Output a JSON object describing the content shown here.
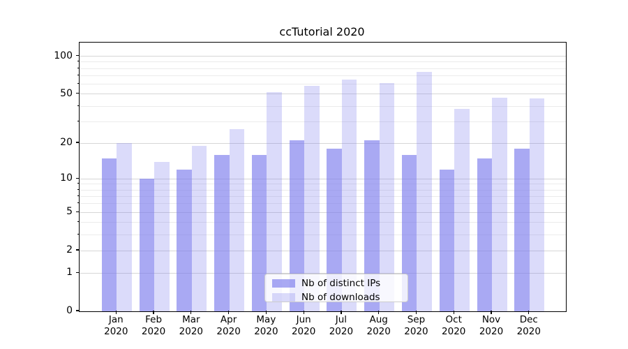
{
  "figure": {
    "title": "ccTutorial 2020"
  },
  "chart_data": {
    "type": "bar",
    "title": "ccTutorial 2020",
    "categories": [
      "Jan 2020",
      "Feb 2020",
      "Mar 2020",
      "Apr 2020",
      "May 2020",
      "Jun 2020",
      "Jul 2020",
      "Aug 2020",
      "Sep 2020",
      "Oct 2020",
      "Nov 2020",
      "Dec 2020"
    ],
    "x_tick_months": [
      "Jan",
      "Feb",
      "Mar",
      "Apr",
      "May",
      "Jun",
      "Jul",
      "Aug",
      "Sep",
      "Oct",
      "Nov",
      "Dec"
    ],
    "x_tick_year": "2020",
    "series": [
      {
        "name": "Nb of distinct IPs",
        "fill": "rgba(124,124,237,0.66)",
        "values": [
          15,
          10,
          12,
          16,
          16,
          21,
          18,
          21,
          16,
          12,
          15,
          18
        ]
      },
      {
        "name": "Nb of downloads",
        "fill": "rgba(124,124,237,0.28)",
        "values": [
          20,
          14,
          19,
          26,
          52,
          58,
          65,
          61,
          75,
          38,
          47,
          46
        ]
      }
    ],
    "yscale": "symlog (log(1+x))",
    "ylim": [
      0,
      128.5
    ],
    "yticks_major": [
      0,
      1,
      2,
      5,
      10,
      20,
      50,
      100
    ],
    "yticks_minor": [
      3,
      4,
      6,
      7,
      8,
      9,
      30,
      40,
      60,
      70,
      80,
      90
    ],
    "grid": {
      "horizontal": true,
      "major_color": "#d6d6d6",
      "minor_color": "#ebebeb"
    },
    "legend": {
      "position": "lower center"
    }
  },
  "colors": {
    "background": "#ffffff",
    "axis": "#000000",
    "text": "#000000",
    "bar_base": "#7c7ced",
    "legend_border": "#cccccc",
    "legend_background": "rgba(255,255,255,0.8)"
  }
}
